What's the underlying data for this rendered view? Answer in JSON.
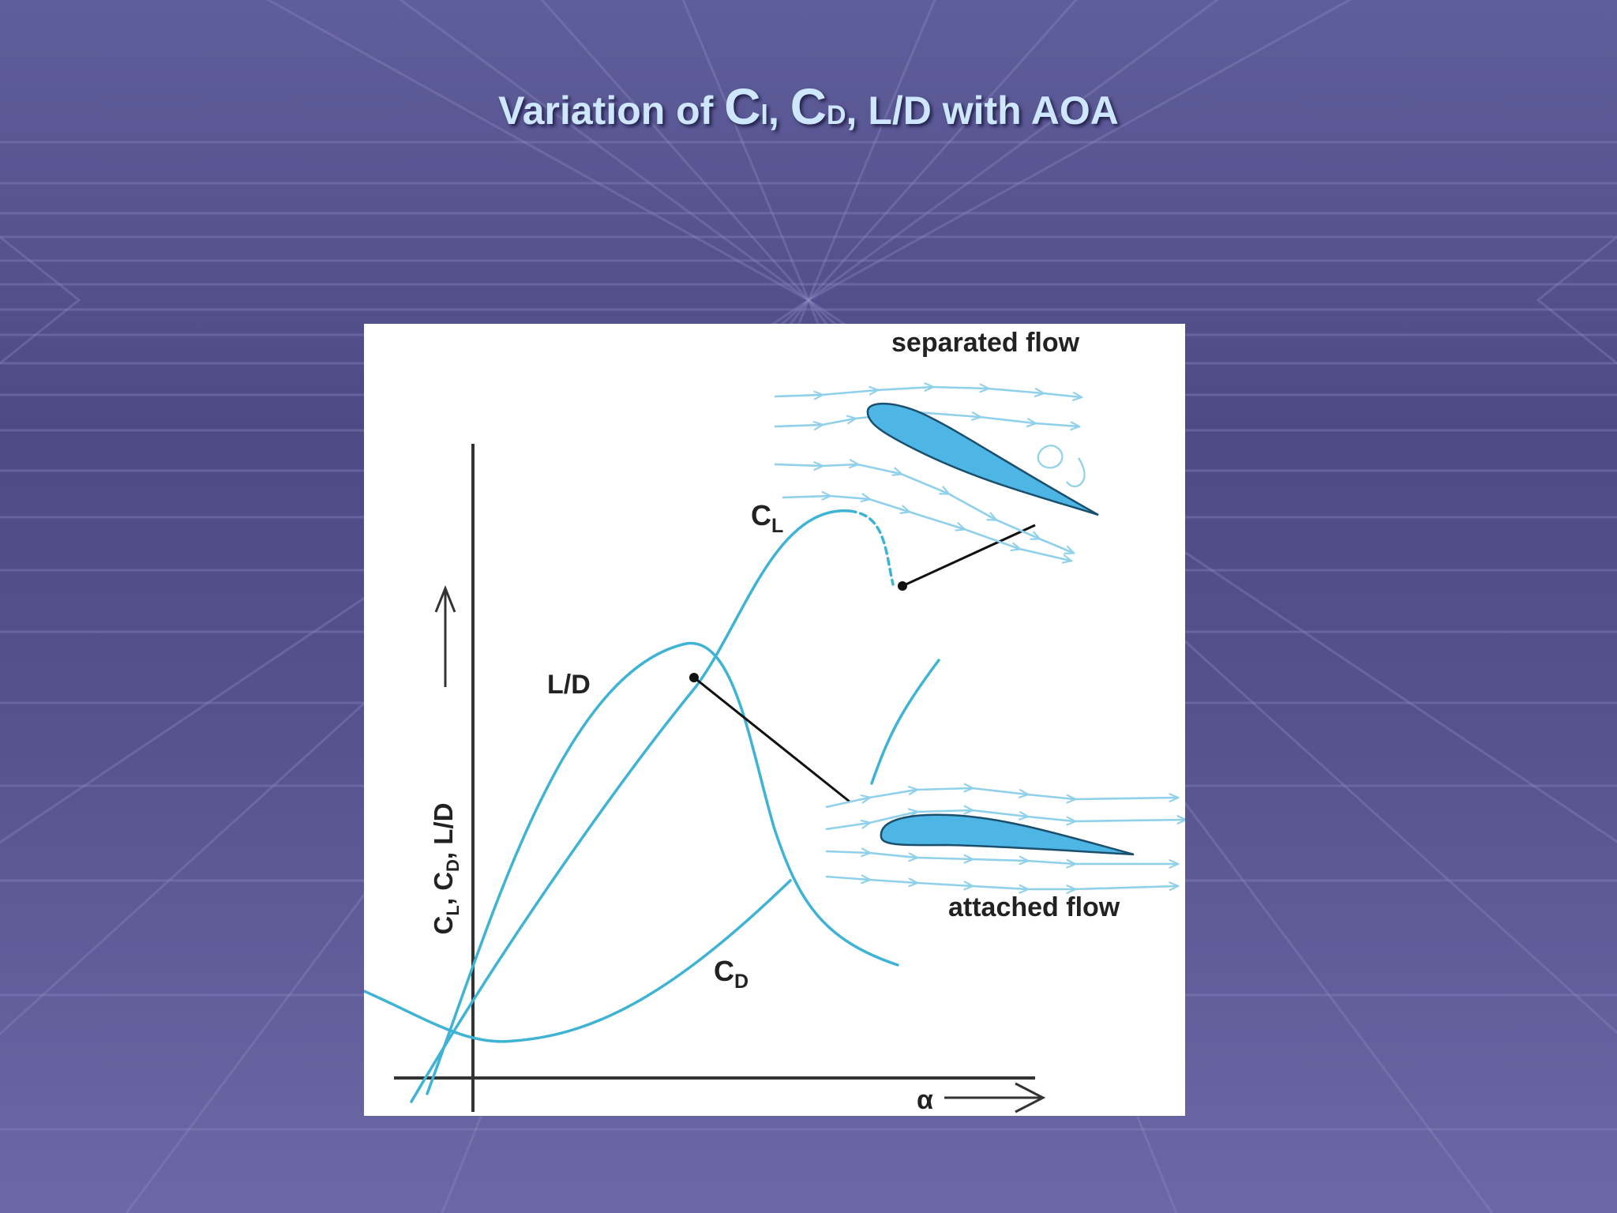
{
  "slide": {
    "title": {
      "part1": "Variation of ",
      "c1": "C",
      "c1_sub": "l",
      "sep1": ", ",
      "c2": "C",
      "c2_sub": "D",
      "part2": ", L/D with AOA"
    }
  },
  "figure": {
    "y_axis_label": {
      "c": "C",
      "l_sub": "L",
      "comma1": ", ",
      "cd": "C",
      "d_sub": "D",
      "rest": ", L/D"
    },
    "x_axis_label": "α",
    "curve_labels": {
      "cl": {
        "main": "C",
        "sub": "L"
      },
      "cd": {
        "main": "C",
        "sub": "D"
      },
      "ld": "L/D"
    },
    "annotations": {
      "separated": "separated flow",
      "attached": "attached flow"
    },
    "colors": {
      "curve": "#3fb3d4",
      "airfoil_fill": "#4db6e4",
      "streamline": "#8fd0ea",
      "axis": "#333333"
    }
  }
}
